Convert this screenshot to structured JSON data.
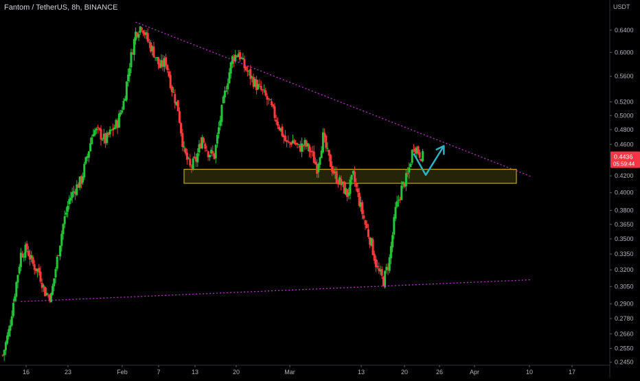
{
  "header": {
    "title": "Fantom / TetherUS, 8h, BINANCE"
  },
  "colors": {
    "background": "#000000",
    "up": "#26c43a",
    "down": "#ff3b3b",
    "trendline": "#c22fd4",
    "zone_border": "#e8c22c",
    "zone_fill": "#2b2a0a",
    "arrow": "#2bb3c7",
    "price_badge": "#f23645"
  },
  "chart_data": {
    "type": "candlestick",
    "title": "Fantom / TetherUS, 8h, BINANCE",
    "y_axis": {
      "unit_label": "USDT",
      "scale": "log",
      "range": [
        0.241,
        0.69
      ],
      "ticks": [
        "0.6400",
        "0.6000",
        "0.5600",
        "0.5200",
        "0.5000",
        "0.4800",
        "0.4600",
        "0.4200",
        "0.4000",
        "0.3800",
        "0.3650",
        "0.3500",
        "0.3350",
        "0.3200",
        "0.3050",
        "0.2900",
        "0.2780",
        "0.2660",
        "0.2550",
        "0.2450"
      ]
    },
    "x_axis": {
      "ticks": [
        "16",
        "23",
        "Feb",
        "7",
        "13",
        "20",
        "Mar",
        "13",
        "20",
        "26",
        "Apr",
        "10",
        "17"
      ]
    },
    "last_price": {
      "value": "0.4436",
      "countdown": "05:59:44"
    },
    "price_path": [
      {
        "t": 0,
        "p": 0.25
      },
      {
        "t": 2,
        "p": 0.268
      },
      {
        "t": 4,
        "p": 0.3
      },
      {
        "t": 6,
        "p": 0.335
      },
      {
        "t": 8,
        "p": 0.34
      },
      {
        "t": 10,
        "p": 0.325
      },
      {
        "t": 12,
        "p": 0.318
      },
      {
        "t": 14,
        "p": 0.3
      },
      {
        "t": 16,
        "p": 0.296
      },
      {
        "t": 18,
        "p": 0.33
      },
      {
        "t": 20,
        "p": 0.365
      },
      {
        "t": 22,
        "p": 0.392
      },
      {
        "t": 24,
        "p": 0.405
      },
      {
        "t": 26,
        "p": 0.415
      },
      {
        "t": 28,
        "p": 0.445
      },
      {
        "t": 30,
        "p": 0.48
      },
      {
        "t": 32,
        "p": 0.475
      },
      {
        "t": 34,
        "p": 0.465
      },
      {
        "t": 36,
        "p": 0.478
      },
      {
        "t": 38,
        "p": 0.49
      },
      {
        "t": 40,
        "p": 0.52
      },
      {
        "t": 42,
        "p": 0.58
      },
      {
        "t": 44,
        "p": 0.635
      },
      {
        "t": 46,
        "p": 0.65
      },
      {
        "t": 48,
        "p": 0.62
      },
      {
        "t": 50,
        "p": 0.6
      },
      {
        "t": 52,
        "p": 0.575
      },
      {
        "t": 54,
        "p": 0.585
      },
      {
        "t": 56,
        "p": 0.54
      },
      {
        "t": 58,
        "p": 0.51
      },
      {
        "t": 60,
        "p": 0.45
      },
      {
        "t": 62,
        "p": 0.43
      },
      {
        "t": 64,
        "p": 0.44
      },
      {
        "t": 66,
        "p": 0.47
      },
      {
        "t": 68,
        "p": 0.45
      },
      {
        "t": 70,
        "p": 0.445
      },
      {
        "t": 72,
        "p": 0.495
      },
      {
        "t": 74,
        "p": 0.545
      },
      {
        "t": 76,
        "p": 0.59
      },
      {
        "t": 78,
        "p": 0.6
      },
      {
        "t": 80,
        "p": 0.575
      },
      {
        "t": 82,
        "p": 0.56
      },
      {
        "t": 84,
        "p": 0.545
      },
      {
        "t": 86,
        "p": 0.535
      },
      {
        "t": 88,
        "p": 0.52
      },
      {
        "t": 90,
        "p": 0.5
      },
      {
        "t": 92,
        "p": 0.48
      },
      {
        "t": 94,
        "p": 0.46
      },
      {
        "t": 96,
        "p": 0.465
      },
      {
        "t": 98,
        "p": 0.455
      },
      {
        "t": 100,
        "p": 0.46
      },
      {
        "t": 102,
        "p": 0.45
      },
      {
        "t": 104,
        "p": 0.43
      },
      {
        "t": 106,
        "p": 0.47
      },
      {
        "t": 108,
        "p": 0.44
      },
      {
        "t": 110,
        "p": 0.42
      },
      {
        "t": 112,
        "p": 0.41
      },
      {
        "t": 114,
        "p": 0.398
      },
      {
        "t": 116,
        "p": 0.42
      },
      {
        "t": 118,
        "p": 0.39
      },
      {
        "t": 120,
        "p": 0.365
      },
      {
        "t": 122,
        "p": 0.345
      },
      {
        "t": 124,
        "p": 0.32
      },
      {
        "t": 126,
        "p": 0.31
      },
      {
        "t": 128,
        "p": 0.33
      },
      {
        "t": 130,
        "p": 0.38
      },
      {
        "t": 132,
        "p": 0.405
      },
      {
        "t": 134,
        "p": 0.42
      },
      {
        "t": 136,
        "p": 0.46
      },
      {
        "t": 138,
        "p": 0.448
      },
      {
        "t": 139,
        "p": 0.4436
      }
    ],
    "trendlines": [
      {
        "name": "descending-resistance",
        "from": {
          "t": 44,
          "p": 0.655
        },
        "to": {
          "t": 175,
          "p": 0.419
        },
        "style": "dotted"
      },
      {
        "name": "ascending-support",
        "from": {
          "t": 6,
          "p": 0.292
        },
        "to": {
          "t": 175,
          "p": 0.311
        },
        "style": "dotted"
      }
    ],
    "zone": {
      "t_start": 60,
      "t_end": 170,
      "p_low": 0.411,
      "p_high": 0.428
    },
    "projection": [
      {
        "t": 136,
        "p": 0.448
      },
      {
        "t": 140,
        "p": 0.421
      },
      {
        "t": 146,
        "p": 0.458
      }
    ]
  }
}
